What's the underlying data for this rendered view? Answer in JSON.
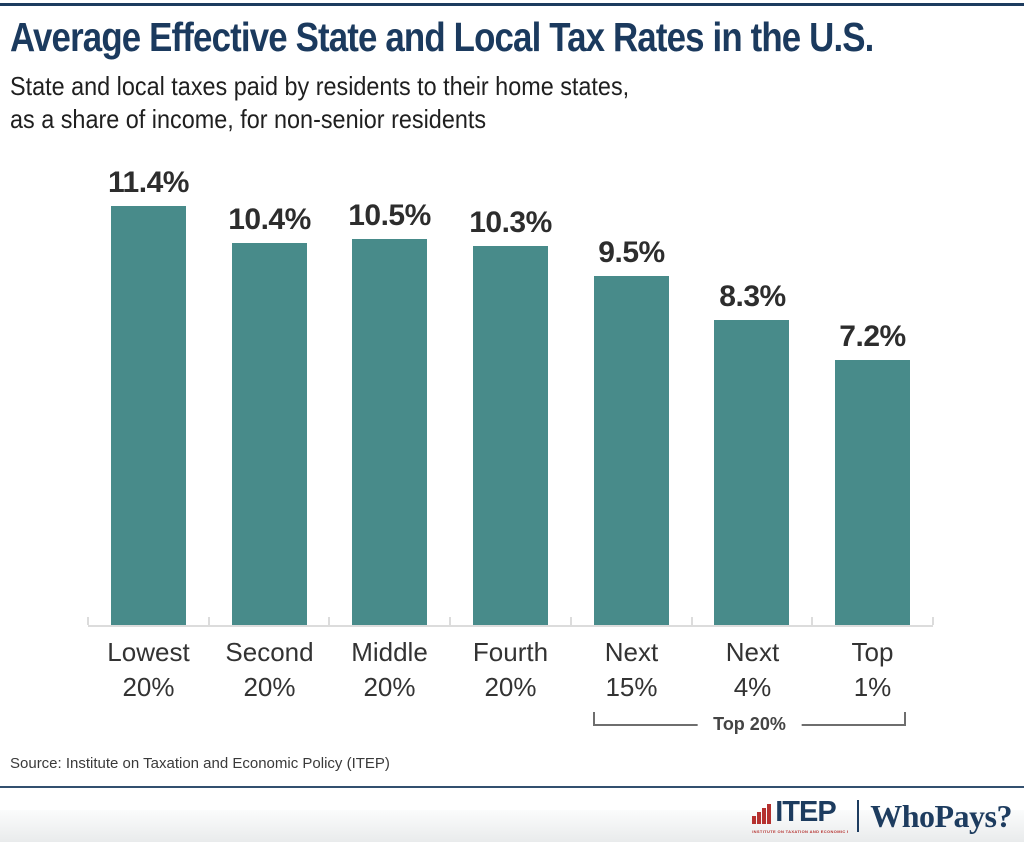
{
  "header": {
    "title": "Average Effective State and Local Tax Rates in the U.S.",
    "subtitle_line1": "State and local taxes paid by residents to their home states,",
    "subtitle_line2": "as a share of income, for non-senior residents"
  },
  "chart_data": {
    "type": "bar",
    "title": "Average Effective State and Local Tax Rates in the U.S.",
    "subtitle": "State and local taxes paid by residents to their home states, as a share of income, for non-senior residents",
    "categories": [
      "Lowest 20%",
      "Second 20%",
      "Middle 20%",
      "Fourth 20%",
      "Next 15%",
      "Next 4%",
      "Top 1%"
    ],
    "category_lines": [
      [
        "Lowest",
        "20%"
      ],
      [
        "Second",
        "20%"
      ],
      [
        "Middle",
        "20%"
      ],
      [
        "Fourth",
        "20%"
      ],
      [
        "Next",
        "15%"
      ],
      [
        "Next",
        "4%"
      ],
      [
        "Top",
        "1%"
      ]
    ],
    "values": [
      11.4,
      10.4,
      10.5,
      10.3,
      9.5,
      8.3,
      7.2
    ],
    "data_labels": [
      "11.4%",
      "10.4%",
      "10.5%",
      "10.3%",
      "9.5%",
      "8.3%",
      "7.2%"
    ],
    "xlabel": "",
    "ylabel": "",
    "ylim": [
      0,
      12
    ],
    "grid": false,
    "legend": "none",
    "bar_color": "#488b8a",
    "group_annotation": {
      "label": "Top 20%",
      "start_category": "Next 15%",
      "end_category": "Top 1%"
    }
  },
  "source": "Source: Institute on Taxation and Economic Policy (ITEP)",
  "footer": {
    "itep": "ITEP",
    "itep_subtext": "INSTITUTE ON TAXATION AND ECONOMIC POLICY",
    "whopays": "WhoPays?"
  },
  "colors": {
    "title_navy": "#1b3a5e",
    "rule_navy": "#1d3c5f",
    "bar_teal": "#488b8a",
    "value_label": "#2d2d2d",
    "category_label": "#333333",
    "axis_gray": "#dcdcdc",
    "bracket_gray": "#6e6e6e",
    "logo_red": "#b5312f"
  }
}
